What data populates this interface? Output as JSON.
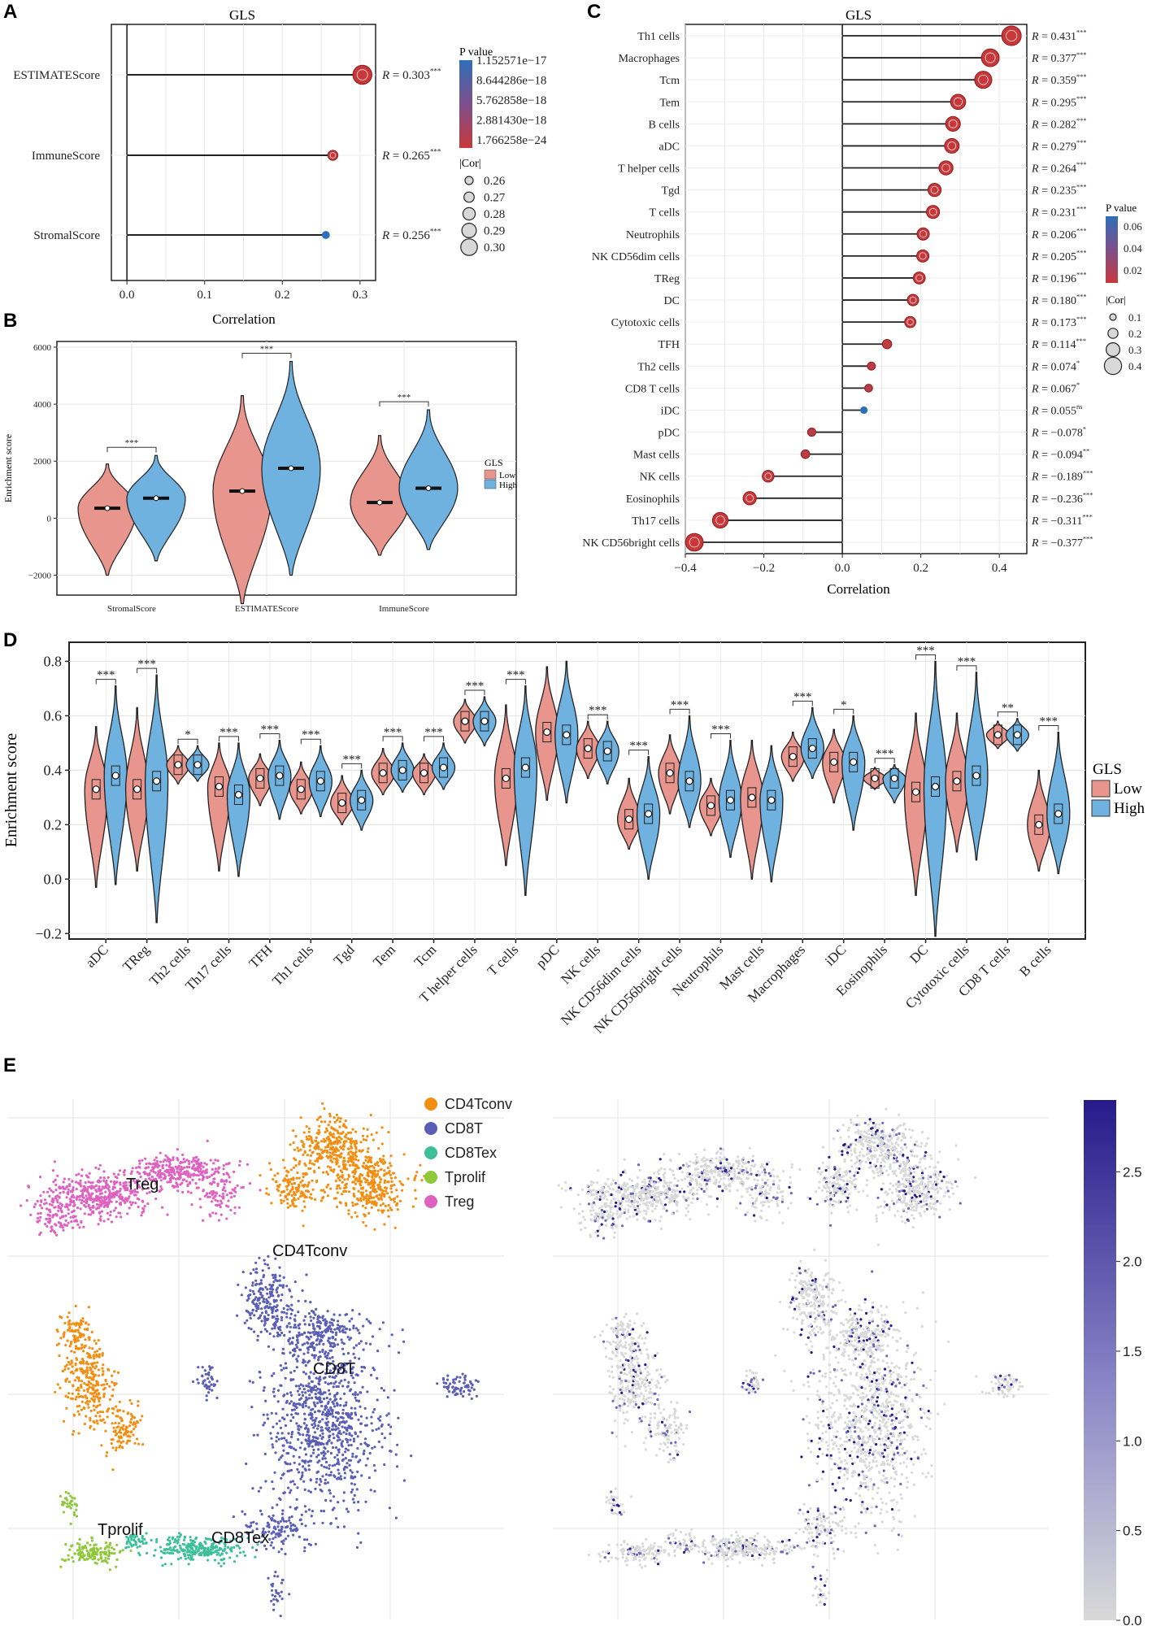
{
  "panel_labels": [
    "A",
    "B",
    "C",
    "D",
    "E"
  ],
  "colors": {
    "low": "#e8958d",
    "high": "#6fb2df",
    "p_low": "#c8383a",
    "p_high": "#2f6fb8",
    "cd4tconv": "#f28e12",
    "cd8t": "#5a5fb5",
    "cd8tex": "#3cbf9a",
    "tprolif": "#8fc83b",
    "treg": "#de63c0",
    "expr_low": "#d9d9d9",
    "expr_high": "#261a8a"
  },
  "chart_data": [
    {
      "id": "A",
      "type": "lollipop",
      "title": "GLS",
      "xlabel": "Correlation",
      "xlim": [
        -0.02,
        0.32
      ],
      "xticks": [
        "0.0",
        "0.1",
        "0.2",
        "0.3"
      ],
      "categories": [
        "ESTIMATEScore",
        "ImmuneScore",
        "StromalScore"
      ],
      "values": [
        0.303,
        0.265,
        0.256
      ],
      "r_labels": [
        "0.303",
        "0.265",
        "0.256"
      ],
      "sig": [
        "***",
        "***",
        "***"
      ],
      "pvalue_legend": {
        "title": "P value",
        "labels": [
          "1.152571e−17",
          "8.644286e−18",
          "5.762858e−18",
          "2.881430e−18",
          "1.766258e−24"
        ]
      },
      "size_legend": {
        "title": "|Cor|",
        "labels": [
          "0.26",
          "0.27",
          "0.28",
          "0.29",
          "0.30"
        ]
      }
    },
    {
      "id": "B",
      "type": "violin",
      "ylabel": "Enrichment score",
      "ylim": [
        -2700,
        6200
      ],
      "yticks": [
        "−2000",
        "0",
        "2000",
        "4000",
        "6000"
      ],
      "categories": [
        "StromalScore",
        "ESTIMATEScore",
        "ImmuneScore"
      ],
      "low_medians": [
        350,
        950,
        550
      ],
      "high_medians": [
        700,
        1750,
        1050
      ],
      "low_range": [
        [
          -2000,
          1900
        ],
        [
          -3000,
          4300
        ],
        [
          -1300,
          2900
        ]
      ],
      "high_range": [
        [
          -1500,
          2200
        ],
        [
          -2000,
          5500
        ],
        [
          -1100,
          3800
        ]
      ],
      "sig": [
        "***",
        "***",
        "***"
      ],
      "legend_title": "GLS",
      "legend": [
        "Low",
        "High"
      ]
    },
    {
      "id": "C",
      "type": "lollipop",
      "title": "GLS",
      "xlabel": "Correlation",
      "xlim": [
        -0.4,
        0.47
      ],
      "xticks": [
        "−0.4",
        "−0.2",
        "0.0",
        "0.2",
        "0.4"
      ],
      "categories": [
        "Th1 cells",
        "Macrophages",
        "Tcm",
        "Tem",
        "B cells",
        "aDC",
        "T helper cells",
        "Tgd",
        "T cells",
        "Neutrophils",
        "NK CD56dim cells",
        "TReg",
        "DC",
        "Cytotoxic cells",
        "TFH",
        "Th2 cells",
        "CD8 T cells",
        "iDC",
        "pDC",
        "Mast cells",
        "NK cells",
        "Eosinophils",
        "Th17 cells",
        "NK CD56bright cells"
      ],
      "values": [
        0.431,
        0.377,
        0.359,
        0.295,
        0.282,
        0.279,
        0.264,
        0.235,
        0.231,
        0.206,
        0.205,
        0.196,
        0.18,
        0.173,
        0.114,
        0.074,
        0.067,
        0.055,
        -0.078,
        -0.094,
        -0.189,
        -0.236,
        -0.311,
        -0.377
      ],
      "r_labels": [
        "0.431",
        "0.377",
        "0.359",
        "0.295",
        "0.282",
        "0.279",
        "0.264",
        "0.235",
        "0.231",
        "0.206",
        "0.205",
        "0.196",
        "0.180",
        "0.173",
        "0.114",
        "0.074",
        "0.067",
        "0.055",
        "−0.078",
        "−0.094",
        "−0.189",
        "−0.236",
        "−0.311",
        "−0.377"
      ],
      "sig": [
        "***",
        "***",
        "***",
        "***",
        "***",
        "***",
        "***",
        "***",
        "***",
        "***",
        "***",
        "***",
        "***",
        "***",
        "***",
        "*",
        "*",
        "ns",
        "*",
        "**",
        "***",
        "***",
        "***",
        "***"
      ],
      "pvalue_legend": {
        "title": "P value",
        "labels": [
          "0.06",
          "0.04",
          "0.02"
        ]
      },
      "size_legend": {
        "title": "|Cor|",
        "labels": [
          "0.1",
          "0.2",
          "0.3",
          "0.4"
        ]
      }
    },
    {
      "id": "D",
      "type": "violin",
      "ylabel": "Enrichment score",
      "ylim": [
        -0.22,
        0.87
      ],
      "yticks": [
        "−0.2",
        "0.0",
        "0.2",
        "0.4",
        "0.6",
        "0.8"
      ],
      "categories": [
        "aDC",
        "TReg",
        "Th2 cells",
        "Th17 cells",
        "TFH",
        "Th1 cells",
        "Tgd",
        "Tem",
        "Tcm",
        "T helper cells",
        "T cells",
        "pDC",
        "NK cells",
        "NK CD56dim cells",
        "NK CD56bright cells",
        "Neutrophils",
        "Mast cells",
        "Macrophages",
        "iDC",
        "Eosinophils",
        "DC",
        "Cytotoxic cells",
        "CD8 T cells",
        "B cells"
      ],
      "low_medians": [
        0.33,
        0.33,
        0.42,
        0.34,
        0.37,
        0.33,
        0.28,
        0.39,
        0.39,
        0.58,
        0.37,
        0.54,
        0.48,
        0.22,
        0.39,
        0.27,
        0.3,
        0.45,
        0.43,
        0.37,
        0.32,
        0.36,
        0.53,
        0.2
      ],
      "high_medians": [
        0.38,
        0.36,
        0.42,
        0.31,
        0.38,
        0.36,
        0.29,
        0.4,
        0.41,
        0.58,
        0.41,
        0.53,
        0.47,
        0.24,
        0.36,
        0.29,
        0.29,
        0.48,
        0.43,
        0.37,
        0.34,
        0.38,
        0.53,
        0.24
      ],
      "low_range": [
        [
          -0.03,
          0.56
        ],
        [
          0.03,
          0.63
        ],
        [
          0.35,
          0.49
        ],
        [
          0.03,
          0.5
        ],
        [
          0.27,
          0.46
        ],
        [
          0.24,
          0.43
        ],
        [
          0.2,
          0.38
        ],
        [
          0.31,
          0.48
        ],
        [
          0.31,
          0.46
        ],
        [
          0.5,
          0.66
        ],
        [
          0.05,
          0.64
        ],
        [
          0.29,
          0.78
        ],
        [
          0.37,
          0.58
        ],
        [
          0.11,
          0.37
        ],
        [
          0.24,
          0.53
        ],
        [
          0.16,
          0.37
        ],
        [
          0.0,
          0.51
        ],
        [
          0.36,
          0.54
        ],
        [
          0.28,
          0.55
        ],
        [
          0.33,
          0.41
        ],
        [
          -0.06,
          0.61
        ],
        [
          0.1,
          0.61
        ],
        [
          0.48,
          0.58
        ],
        [
          0.03,
          0.4
        ]
      ],
      "high_range": [
        [
          -0.02,
          0.71
        ],
        [
          -0.16,
          0.75
        ],
        [
          0.36,
          0.49
        ],
        [
          0.01,
          0.5
        ],
        [
          0.22,
          0.51
        ],
        [
          0.23,
          0.49
        ],
        [
          0.18,
          0.4
        ],
        [
          0.32,
          0.5
        ],
        [
          0.33,
          0.5
        ],
        [
          0.49,
          0.67
        ],
        [
          -0.06,
          0.71
        ],
        [
          0.28,
          0.8
        ],
        [
          0.35,
          0.58
        ],
        [
          0.0,
          0.45
        ],
        [
          0.19,
          0.6
        ],
        [
          0.08,
          0.51
        ],
        [
          -0.01,
          0.49
        ],
        [
          0.37,
          0.63
        ],
        [
          0.18,
          0.6
        ],
        [
          0.28,
          0.42
        ],
        [
          -0.21,
          0.8
        ],
        [
          0.07,
          0.76
        ],
        [
          0.47,
          0.59
        ],
        [
          0.02,
          0.54
        ]
      ],
      "sig": [
        "***",
        "***",
        "*",
        "***",
        "***",
        "***",
        "***",
        "***",
        "***",
        "***",
        "***",
        "",
        "***",
        "***",
        "***",
        "***",
        "",
        "***",
        "*",
        "***",
        "***",
        "***",
        "**",
        "***"
      ],
      "legend_title": "GLS",
      "legend": [
        "Low",
        "High"
      ]
    },
    {
      "id": "E-left",
      "type": "scatter",
      "cluster_labels": [
        "Treg",
        "CD4Tconv",
        "CD8T",
        "Tprolif",
        "CD8Tex"
      ],
      "legend": [
        "CD4Tconv",
        "CD8T",
        "CD8Tex",
        "Tprolif",
        "Treg"
      ]
    },
    {
      "id": "E-right",
      "type": "scatter",
      "colorbar_ticks": [
        "0.0",
        "0.5",
        "1.0",
        "1.5",
        "2.0",
        "2.5"
      ],
      "colorbar_range": [
        0.0,
        2.9
      ]
    }
  ]
}
